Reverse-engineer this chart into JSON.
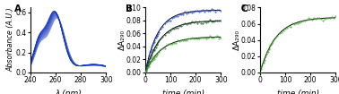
{
  "panel_A": {
    "label": "A",
    "xlabel": "λ (nm)",
    "ylabel": "Absorbance (A.U.)",
    "xlim": [
      240,
      300
    ],
    "ylim": [
      0.0,
      0.65
    ],
    "yticks": [
      0.0,
      0.2,
      0.4,
      0.6
    ],
    "xticks": [
      240,
      260,
      280,
      300
    ],
    "n_curves": 20,
    "base_color": "#1030bb",
    "light_color": "#8899dd"
  },
  "panel_B": {
    "label": "B",
    "xlabel": "time (min)",
    "ylabel": "ΔA₂₉₀",
    "xlim": [
      0,
      300
    ],
    "ylim": [
      0.0,
      0.1
    ],
    "yticks": [
      0.0,
      0.02,
      0.04,
      0.06,
      0.08,
      0.1
    ],
    "xticks": [
      0,
      100,
      200,
      300
    ],
    "xtick_labels": [
      "0",
      "100",
      "200",
      "300"
    ],
    "curves": [
      {
        "A_inf": 0.096,
        "k": 0.02,
        "color": "#2244cc",
        "fit_color": "black"
      },
      {
        "A_inf": 0.08,
        "k": 0.017,
        "color": "#1a5522",
        "fit_color": "black"
      },
      {
        "A_inf": 0.055,
        "k": 0.016,
        "color": "#44aa33",
        "fit_color": "black"
      }
    ]
  },
  "panel_C": {
    "label": "C",
    "xlabel": "time (min)",
    "ylabel": "ΔA₂₉₀",
    "xlim": [
      0,
      300
    ],
    "ylim": [
      0.0,
      0.08
    ],
    "yticks": [
      0.0,
      0.02,
      0.04,
      0.06,
      0.08
    ],
    "xticks": [
      0,
      100,
      200,
      300
    ],
    "xtick_labels": [
      "0",
      "100",
      "200",
      "300"
    ],
    "curves": [
      {
        "A_inf": 0.068,
        "k": 0.016,
        "color": "#44aa33",
        "fit_color": "black"
      }
    ]
  },
  "background": "white",
  "tick_fontsize": 5.5,
  "label_fontsize": 6.5,
  "panel_label_fontsize": 7.5
}
